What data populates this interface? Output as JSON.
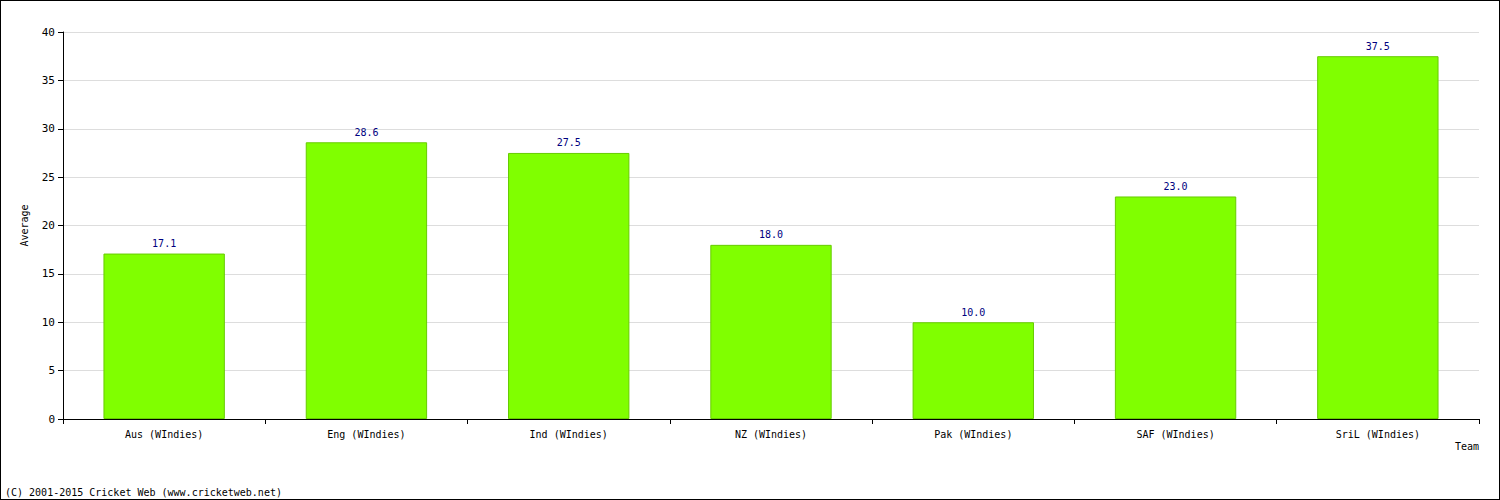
{
  "chart_data": {
    "type": "bar",
    "x_label": "Team",
    "y_label": "Average",
    "categories": [
      "Aus (WIndies)",
      "Eng (WIndies)",
      "Ind (WIndies)",
      "NZ (WIndies)",
      "Pak (WIndies)",
      "SAF (WIndies)",
      "SriL (WIndies)"
    ],
    "values": [
      17.1,
      28.6,
      27.5,
      18.0,
      10.0,
      23.0,
      37.5
    ],
    "value_labels": [
      "17.1",
      "28.6",
      "27.5",
      "18.0",
      "10.0",
      "23.0",
      "37.5"
    ],
    "color": "#80ff00",
    "ylim": [
      0,
      40
    ],
    "yticks": [
      0,
      5,
      10,
      15,
      20,
      25,
      30,
      35,
      40
    ],
    "grid": true,
    "data_labels": true,
    "annotations": [
      "(C) 2001-2015 Cricket Web (www.cricketweb.net)"
    ]
  }
}
